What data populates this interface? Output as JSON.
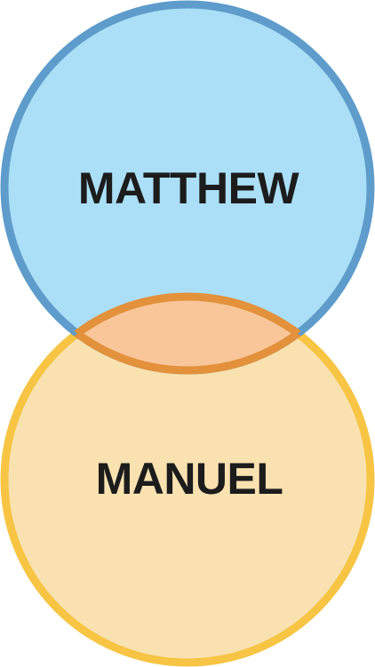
{
  "diagram": {
    "type": "venn",
    "sets": [
      {
        "id": "top",
        "label": "MATTHEW",
        "fill": "#ABDFF8",
        "stroke": "#5E9CCB"
      },
      {
        "id": "bottom",
        "label": "MANUEL",
        "fill": "#F9E2B0",
        "stroke": "#F7C443"
      }
    ],
    "overlap": {
      "fill": "#F9C69A",
      "stroke": "#E3913B"
    },
    "text_color": "#1C1C1C"
  }
}
